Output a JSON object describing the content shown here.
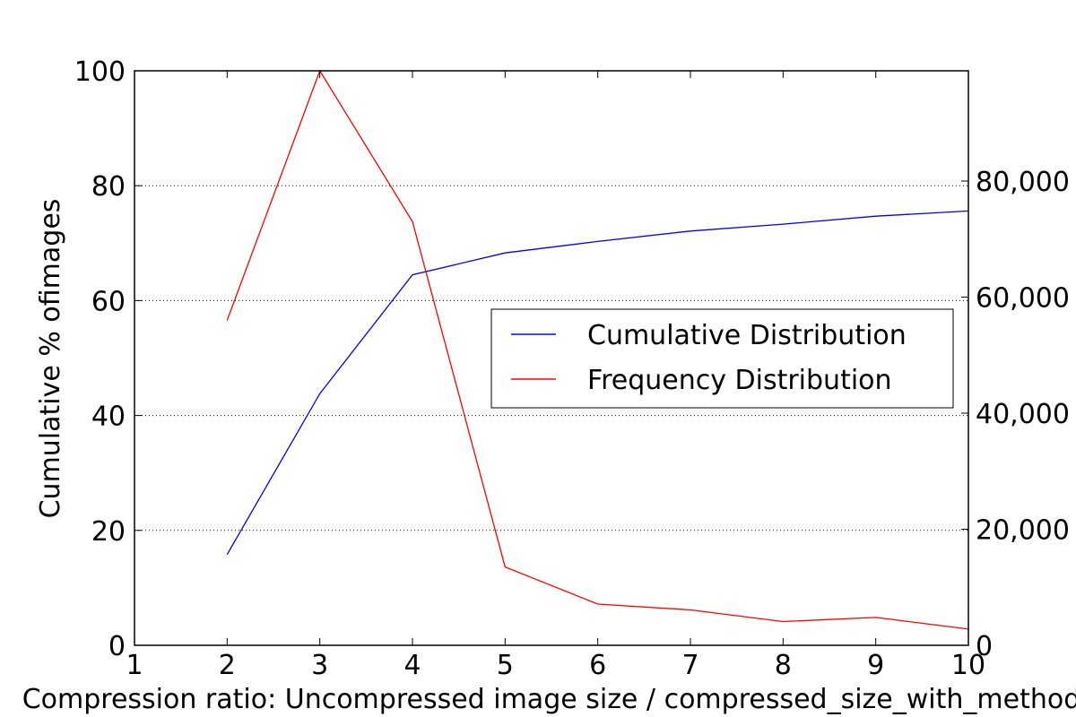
{
  "chart_data": {
    "type": "line",
    "xlabel": "Compression ratio: Uncompressed image size / compressed_size_with_method",
    "ylabel": "Cumulative % ofimages",
    "xlim": [
      1,
      10
    ],
    "ylim": [
      0,
      100
    ],
    "ylim_right": [
      0,
      99000
    ],
    "x_ticks": [
      "1",
      "2",
      "3",
      "4",
      "5",
      "6",
      "7",
      "8",
      "9",
      "10"
    ],
    "y_ticks": [
      "0",
      "20",
      "40",
      "60",
      "80",
      "100"
    ],
    "y_right_ticks": [
      "0",
      "20,000",
      "40,000",
      "60,000",
      "80,000"
    ],
    "grid": "horizontal dotted",
    "legend_position": "center-right",
    "series": [
      {
        "name": "Cumulative Distribution",
        "axis": "left",
        "color": "#0000ff",
        "x": [
          2,
          3,
          4,
          5,
          6,
          7,
          8,
          9,
          10
        ],
        "values": [
          15.8,
          43.8,
          64.5,
          68.3,
          70.3,
          72.1,
          73.3,
          74.7,
          75.6
        ]
      },
      {
        "name": "Frequency Distribution",
        "axis": "right",
        "color": "#ff0000",
        "x": [
          2,
          3,
          4,
          5,
          6,
          7,
          8,
          9,
          10
        ],
        "values": [
          56000,
          99000,
          73000,
          13500,
          7100,
          6100,
          4100,
          4800,
          2800
        ]
      }
    ]
  }
}
